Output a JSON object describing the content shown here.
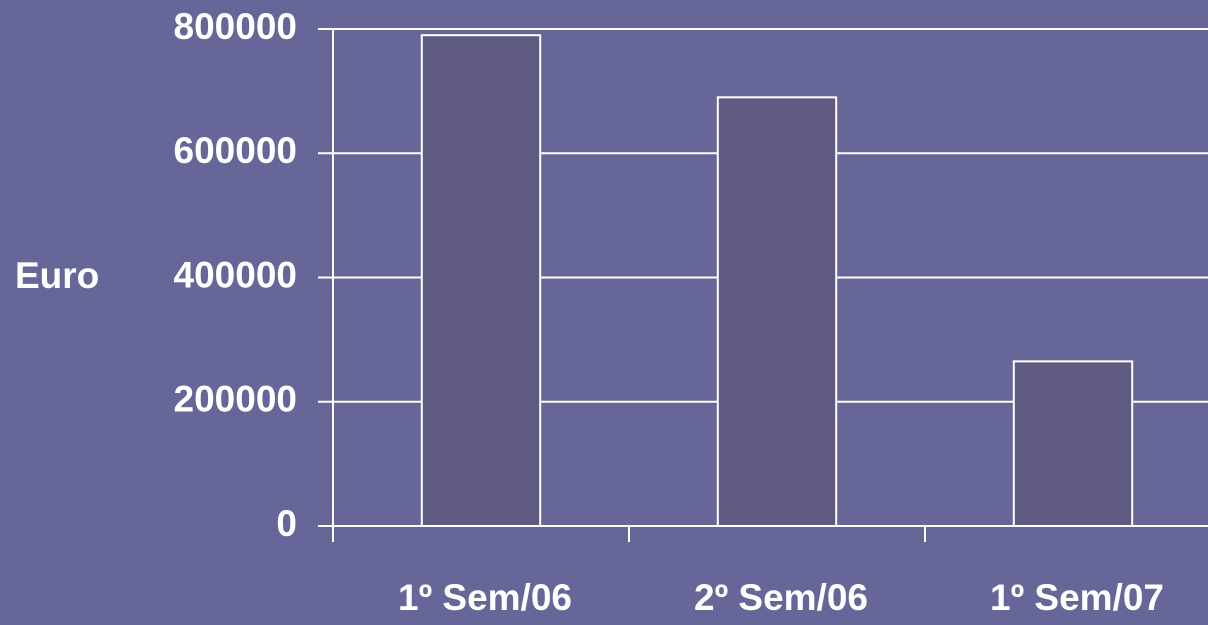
{
  "chart_data": {
    "type": "bar",
    "ylabel": "Euro",
    "categories": [
      "1º Sem/06",
      "2º Sem/06",
      "1º Sem/07"
    ],
    "values": [
      790000,
      690000,
      265000
    ],
    "color": "#5f5a7f",
    "ylim": [
      0,
      800000
    ],
    "yticks": [
      0,
      200000,
      400000,
      600000,
      800000
    ],
    "grid": true
  }
}
